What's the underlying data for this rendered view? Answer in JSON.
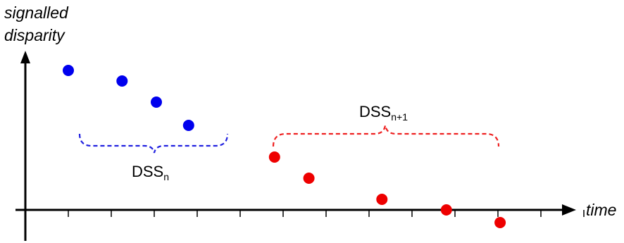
{
  "axes": {
    "y_title_line1": "signalled",
    "y_title_line2": "disparity",
    "x_title": "time"
  },
  "groups": [
    {
      "label_main": "DSS",
      "label_sub": "n",
      "color": "#2020e0",
      "point_color": "#0000ee",
      "points": [
        {
          "t": 1,
          "d": 0.66
        },
        {
          "t": 2.25,
          "d": 0.61
        },
        {
          "t": 3.05,
          "d": 0.51
        },
        {
          "t": 3.8,
          "d": 0.4
        }
      ]
    },
    {
      "label_main": "DSS",
      "label_sub": "n+1",
      "color": "#ee2020",
      "point_color": "#ee0000",
      "points": [
        {
          "t": 5.8,
          "d": 0.25
        },
        {
          "t": 6.6,
          "d": 0.15
        },
        {
          "t": 8.3,
          "d": 0.05
        },
        {
          "t": 9.8,
          "d": 0.0
        },
        {
          "t": 11.05,
          "d": -0.06
        }
      ]
    }
  ],
  "axis_ticks": 13
}
